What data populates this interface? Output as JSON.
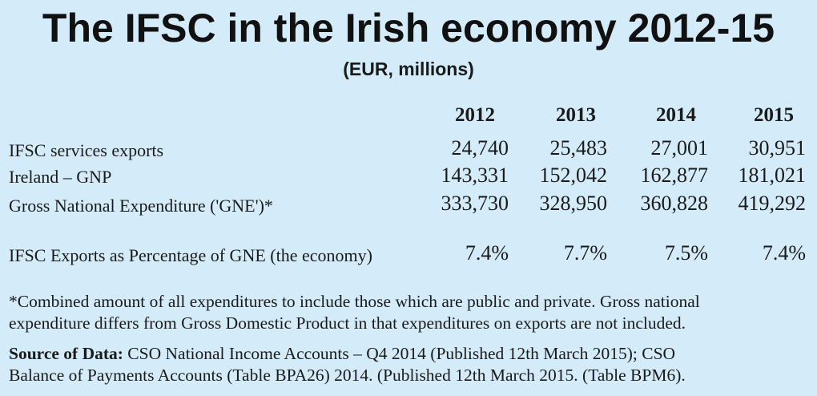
{
  "title": "The IFSC in the Irish economy 2012-15",
  "subtitle": "(EUR, millions)",
  "years": [
    "2012",
    "2013",
    "2014",
    "2015"
  ],
  "rows": [
    {
      "label": "IFSC services exports",
      "values": [
        "24,740",
        "25,483",
        "27,001",
        "30,951"
      ]
    },
    {
      "label": "Ireland – GNP",
      "values": [
        "143,331",
        "152,042",
        "162,877",
        "181,021"
      ]
    },
    {
      "label": "Gross National Expenditure ('GNE')*",
      "values": [
        "333,730",
        "328,950",
        "360,828",
        "419,292"
      ]
    },
    {
      "label": "IFSC Exports as Percentage of GNE (the economy)",
      "values": [
        "7.4%",
        "7.7%",
        "7.5%",
        "7.4%"
      ]
    }
  ],
  "footnote": {
    "line1": "*Combined amount of all expenditures to include those which are public and private. Gross national",
    "line2": "expenditure differs from Gross Domestic Product in that expenditures on exports are not included."
  },
  "source": {
    "label": "Source of Data:",
    "line1": " CSO National Income Accounts – Q4 2014 (Published 12th March 2015); CSO",
    "line2": "Balance of Payments Accounts (Table BPA26) 2014. (Published 12th March 2015. (Table BPM6)."
  }
}
